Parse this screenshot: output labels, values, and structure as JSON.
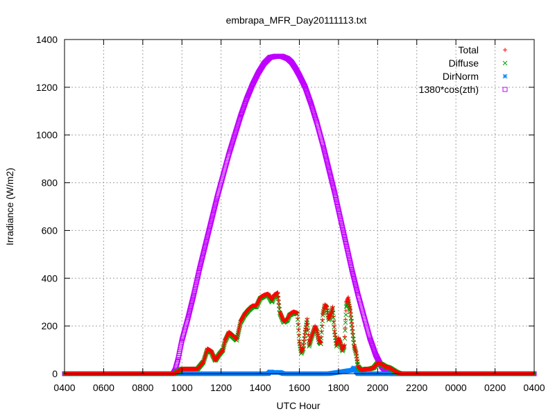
{
  "chart_data": {
    "type": "scatter",
    "title": "embrapa_MFR_Day20111113.txt",
    "xlabel": "UTC Hour",
    "ylabel": "Irradiance (W/m2)",
    "x_tick_labels": [
      "0400",
      "0600",
      "0800",
      "1000",
      "1200",
      "1400",
      "1600",
      "1800",
      "2000",
      "2200",
      "0000",
      "0200",
      "0400"
    ],
    "x_tick_hours": [
      4,
      6,
      8,
      10,
      12,
      14,
      16,
      18,
      20,
      22,
      24,
      26,
      28
    ],
    "xlim": [
      4,
      28
    ],
    "ylim": [
      0,
      1400
    ],
    "y_ticks": [
      0,
      200,
      400,
      600,
      800,
      1000,
      1200,
      1400
    ],
    "grid": true,
    "legend_position": "top-right",
    "series": [
      {
        "name": "Total",
        "marker": "plus",
        "color": "#ff0000",
        "x": [
          4,
          9.6,
          9.8,
          10.0,
          10.4,
          10.8,
          11.1,
          11.3,
          11.5,
          11.7,
          11.9,
          12.1,
          12.2,
          12.4,
          12.6,
          12.8,
          13.0,
          13.2,
          13.4,
          13.6,
          13.8,
          14.0,
          14.2,
          14.4,
          14.6,
          14.7,
          14.9,
          15.0,
          15.2,
          15.4,
          15.5,
          15.7,
          15.9,
          16.0,
          16.1,
          16.2,
          16.3,
          16.4,
          16.5,
          16.6,
          16.7,
          16.8,
          16.9,
          17.0,
          17.1,
          17.2,
          17.3,
          17.4,
          17.5,
          17.6,
          17.7,
          17.8,
          17.9,
          18.0,
          18.1,
          18.2,
          18.3,
          18.4,
          18.5,
          18.6,
          18.7,
          18.8,
          18.9,
          19.0,
          19.1,
          19.2,
          19.4,
          19.6,
          19.8,
          20.0,
          20.2,
          20.4,
          20.6,
          20.8,
          21.0,
          21.2,
          21.4,
          21.6,
          21.8,
          22.0,
          22.2,
          28
        ],
        "y": [
          0,
          0,
          10,
          20,
          20,
          20,
          50,
          105,
          95,
          55,
          80,
          100,
          140,
          175,
          160,
          145,
          220,
          250,
          270,
          285,
          285,
          320,
          330,
          335,
          310,
          330,
          340,
          260,
          220,
          230,
          250,
          260,
          255,
          140,
          90,
          110,
          180,
          230,
          120,
          150,
          175,
          200,
          180,
          140,
          130,
          250,
          290,
          280,
          230,
          250,
          280,
          180,
          120,
          150,
          130,
          100,
          120,
          300,
          320,
          270,
          200,
          120,
          90,
          30,
          20,
          15,
          20,
          20,
          25,
          45,
          40,
          30,
          25,
          15,
          5,
          0,
          0,
          0,
          0,
          0,
          0,
          0
        ]
      },
      {
        "name": "Diffuse",
        "marker": "cross",
        "color": "#00a000",
        "x": [
          4,
          9.6,
          9.8,
          10.0,
          10.4,
          10.8,
          11.1,
          11.3,
          11.5,
          11.7,
          11.9,
          12.1,
          12.2,
          12.4,
          12.6,
          12.8,
          13.0,
          13.2,
          13.4,
          13.6,
          13.8,
          14.0,
          14.2,
          14.4,
          14.6,
          14.7,
          14.9,
          15.0,
          15.2,
          15.4,
          15.5,
          15.7,
          15.9,
          16.0,
          16.1,
          16.2,
          16.3,
          16.4,
          16.5,
          16.6,
          16.7,
          16.8,
          16.9,
          17.0,
          17.1,
          17.2,
          17.3,
          17.4,
          17.5,
          17.6,
          17.7,
          17.8,
          17.9,
          18.0,
          18.1,
          18.2,
          18.3,
          18.4,
          18.5,
          18.6,
          18.7,
          18.8,
          18.9,
          19.0,
          19.1,
          19.2,
          19.4,
          19.6,
          19.8,
          20.0,
          20.2,
          20.4,
          20.6,
          20.8,
          21.0,
          21.2,
          21.4,
          21.6,
          21.8,
          22.0,
          22.2,
          28
        ],
        "y": [
          0,
          0,
          10,
          20,
          20,
          20,
          50,
          100,
          90,
          55,
          80,
          100,
          135,
          170,
          155,
          140,
          215,
          245,
          265,
          280,
          280,
          315,
          325,
          330,
          300,
          320,
          330,
          255,
          215,
          225,
          245,
          255,
          250,
          135,
          85,
          105,
          175,
          225,
          115,
          145,
          170,
          195,
          175,
          135,
          125,
          245,
          285,
          275,
          225,
          245,
          275,
          175,
          115,
          145,
          125,
          95,
          115,
          280,
          300,
          260,
          190,
          115,
          85,
          30,
          20,
          15,
          20,
          20,
          25,
          45,
          40,
          30,
          25,
          15,
          5,
          0,
          0,
          0,
          0,
          0,
          0,
          0
        ]
      },
      {
        "name": "DirNorm",
        "marker": "star",
        "color": "#0080ff",
        "x": [
          4,
          10,
          14.4,
          14.5,
          14.7,
          15.0,
          15.2,
          17.5,
          18.7,
          18.8,
          18.9,
          19.0,
          28
        ],
        "y": [
          0,
          0,
          0,
          8,
          5,
          6,
          0,
          0,
          15,
          25,
          10,
          0,
          0
        ]
      },
      {
        "name": "1380*cos(zth)",
        "marker": "square",
        "color": "#c000ff",
        "x": [
          4,
          9.55,
          9.65,
          9.8,
          10.0,
          10.3,
          10.6,
          10.9,
          11.2,
          11.5,
          11.8,
          12.1,
          12.4,
          12.7,
          13.0,
          13.3,
          13.6,
          13.9,
          14.2,
          14.5,
          14.8,
          15.1,
          15.4,
          15.6,
          15.8,
          16.0,
          16.3,
          16.6,
          16.9,
          17.2,
          17.5,
          17.8,
          18.1,
          18.4,
          18.7,
          19.0,
          19.3,
          19.6,
          19.9,
          20.2,
          20.5,
          20.8,
          21.1,
          21.4,
          21.6,
          21.8,
          22.0,
          22.1,
          28
        ],
        "y": [
          0,
          0,
          15,
          60,
          140,
          230,
          330,
          440,
          540,
          640,
          740,
          830,
          920,
          1000,
          1080,
          1150,
          1210,
          1260,
          1300,
          1325,
          1330,
          1330,
          1320,
          1305,
          1280,
          1250,
          1200,
          1130,
          1050,
          960,
          860,
          760,
          650,
          540,
          430,
          330,
          240,
          150,
          80,
          30,
          5,
          0,
          0,
          0,
          0,
          0,
          0,
          0,
          0
        ]
      }
    ]
  }
}
